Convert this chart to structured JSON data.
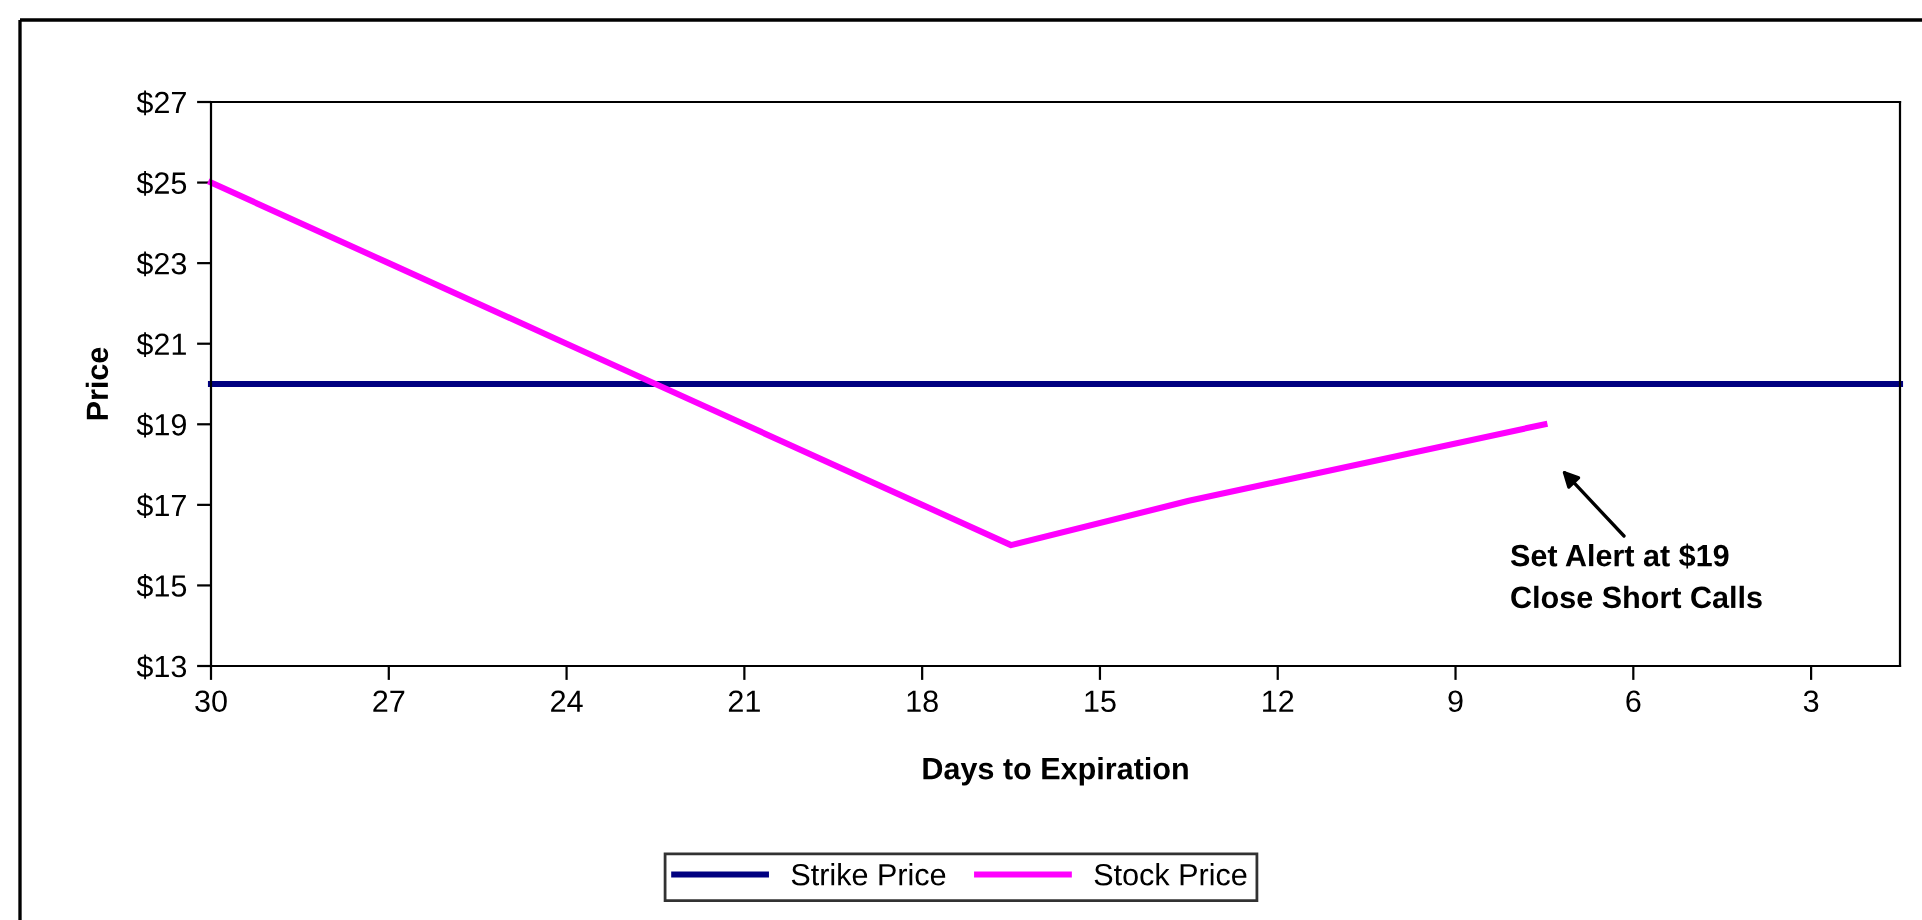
{
  "chart_data": {
    "type": "line",
    "xlabel": "Days to Expiration",
    "ylabel": "Price",
    "xlim": [
      30,
      1.5
    ],
    "xticks": [
      30,
      27,
      24,
      21,
      18,
      15,
      12,
      9,
      6,
      3
    ],
    "ylim": [
      13,
      27
    ],
    "yticks": [
      {
        "value": 13,
        "label": "$13"
      },
      {
        "value": 15,
        "label": "$15"
      },
      {
        "value": 17,
        "label": "$17"
      },
      {
        "value": 19,
        "label": "$19"
      },
      {
        "value": 21,
        "label": "$21"
      },
      {
        "value": 23,
        "label": "$23"
      },
      {
        "value": 25,
        "label": "$25"
      },
      {
        "value": 27,
        "label": "$27"
      }
    ],
    "series": [
      {
        "name": "Strike Price",
        "color": "#000080",
        "x": [
          30,
          1.5
        ],
        "values": [
          20,
          20
        ]
      },
      {
        "name": "Stock Price",
        "color": "#ff00ff",
        "x": [
          30,
          27,
          24,
          21,
          18,
          16.5,
          13.5,
          7.5
        ],
        "values": [
          25,
          23,
          21,
          19,
          17,
          16,
          17.1,
          19
        ]
      }
    ],
    "annotations": [
      "Set Alert at $19\nClose Short Calls"
    ],
    "legend": "bottom",
    "grid": false,
    "marker": "none",
    "line_style": "solid"
  }
}
